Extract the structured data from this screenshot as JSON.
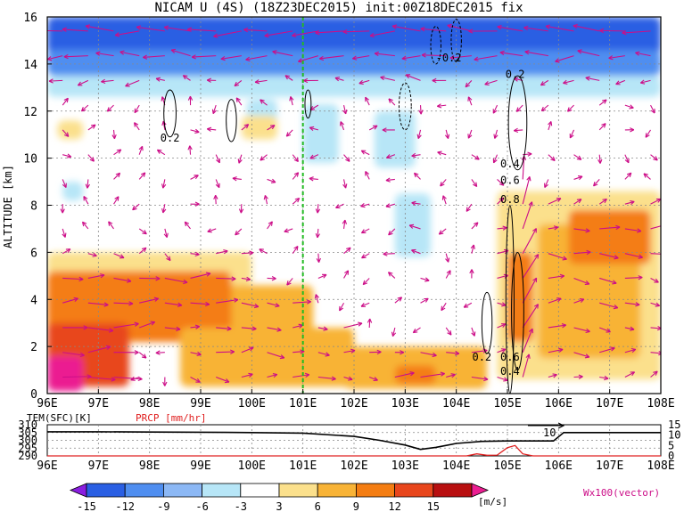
{
  "chart_data": [
    {
      "type": "heatmap",
      "title": "NICAM U (4S) (18Z23DEC2015) init:00Z18DEC2015 fix",
      "xlabel": "",
      "ylabel": "ALTITUDE [km]",
      "xlim": [
        96,
        108
      ],
      "ylim": [
        0,
        16
      ],
      "x_ticks": [
        "96E",
        "97E",
        "98E",
        "99E",
        "100E",
        "101E",
        "102E",
        "103E",
        "104E",
        "105E",
        "106E",
        "107E",
        "108E"
      ],
      "y_ticks": [
        "0",
        "2",
        "4",
        "6",
        "8",
        "10",
        "12",
        "14",
        "16"
      ],
      "grid": true,
      "marker_line_lon": 101,
      "colorbar": {
        "levels": [
          -15,
          -12,
          -9,
          -6,
          -3,
          3,
          6,
          9,
          12,
          15
        ],
        "tick_labels": [
          "-15",
          "-12",
          "-9",
          "-6",
          "-3",
          "3",
          "6",
          "9",
          "12",
          "15"
        ],
        "colors": [
          "#8a1ee0",
          "#2a5fe3",
          "#4f8ef0",
          "#8cb8f5",
          "#b7e6f7",
          "#ffffff",
          "#fbe08c",
          "#f8b336",
          "#f47d12",
          "#e8461c",
          "#b80f10",
          "#eb1e91"
        ],
        "unit": "[m/s]"
      },
      "vector_label": "Wx100(vector)",
      "vector_color": "#cc0e88",
      "regions": [
        {
          "lon": [
            96,
            108
          ],
          "alt": [
            14.4,
            16
          ],
          "value": -14
        },
        {
          "lon": [
            96,
            108
          ],
          "alt": [
            13.5,
            14.6
          ],
          "value": -10
        },
        {
          "lon": [
            96,
            108
          ],
          "alt": [
            12.6,
            13.5
          ],
          "value": -5
        },
        {
          "lon": [
            99.9,
            100.5
          ],
          "alt": [
            11.5,
            12.5
          ],
          "value": -4
        },
        {
          "lon": [
            101.0,
            101.7
          ],
          "alt": [
            9.8,
            12.3
          ],
          "value": -4
        },
        {
          "lon": [
            102.4,
            103.2
          ],
          "alt": [
            9.6,
            12.0
          ],
          "value": -4
        },
        {
          "lon": [
            102.8,
            103.5
          ],
          "alt": [
            5.8,
            8.5
          ],
          "value": -4
        },
        {
          "lon": [
            96.3,
            96.7
          ],
          "alt": [
            8.2,
            9.0
          ],
          "value": -4
        },
        {
          "lon": [
            96.2,
            96.7
          ],
          "alt": [
            10.8,
            11.6
          ],
          "value": 4
        },
        {
          "lon": [
            99.8,
            100.5
          ],
          "alt": [
            10.8,
            11.8
          ],
          "value": 4
        },
        {
          "lon": [
            96,
            100.0
          ],
          "alt": [
            4.5,
            6.0
          ],
          "value": 4
        },
        {
          "lon": [
            96,
            101.2
          ],
          "alt": [
            2.6,
            4.6
          ],
          "value": 7
        },
        {
          "lon": [
            96,
            99.6
          ],
          "alt": [
            2.2,
            5.2
          ],
          "value": 10
        },
        {
          "lon": [
            96,
            97.6
          ],
          "alt": [
            0.3,
            3.0
          ],
          "value": 13
        },
        {
          "lon": [
            96,
            96.7
          ],
          "alt": [
            0.1,
            1.6
          ],
          "value": 16
        },
        {
          "lon": [
            98.6,
            102.0
          ],
          "alt": [
            0.3,
            2.8
          ],
          "value": 7
        },
        {
          "lon": [
            101.8,
            104.6
          ],
          "alt": [
            0.2,
            2.0
          ],
          "value": 6
        },
        {
          "lon": [
            102.8,
            103.6
          ],
          "alt": [
            0.4,
            1.2
          ],
          "value": 10
        },
        {
          "lon": [
            104.8,
            108
          ],
          "alt": [
            0.6,
            8.6
          ],
          "value": 4
        },
        {
          "lon": [
            105.6,
            107.6
          ],
          "alt": [
            1.5,
            7.2
          ],
          "value": 7
        },
        {
          "lon": [
            106.2,
            107.8
          ],
          "alt": [
            5.5,
            7.8
          ],
          "value": 10
        },
        {
          "lon": [
            105.0,
            105.5
          ],
          "alt": [
            2.2,
            6.0
          ],
          "value": 10
        }
      ],
      "contour_labels": [
        {
          "lon": 98.4,
          "alt": 10.7,
          "text": "0.2"
        },
        {
          "lon": 103.85,
          "alt": 14.1,
          "text": "-0.2"
        },
        {
          "lon": 105.15,
          "alt": 13.4,
          "text": "0.2"
        },
        {
          "lon": 105.05,
          "alt": 9.6,
          "text": "0.4"
        },
        {
          "lon": 105.05,
          "alt": 8.9,
          "text": "0.6"
        },
        {
          "lon": 105.05,
          "alt": 8.1,
          "text": "0.8"
        },
        {
          "lon": 104.5,
          "alt": 1.4,
          "text": "0.2"
        },
        {
          "lon": 105.05,
          "alt": 1.4,
          "text": "0.6"
        },
        {
          "lon": 105.05,
          "alt": 0.8,
          "text": "0.4"
        }
      ]
    },
    {
      "type": "line",
      "xlim": [
        96,
        108
      ],
      "x_ticks": [
        "96E",
        "97E",
        "98E",
        "99E",
        "100E",
        "101E",
        "102E",
        "103E",
        "104E",
        "105E",
        "106E",
        "107E",
        "108E"
      ],
      "left_axis": {
        "label": "TEM(SFC)[K]",
        "ticks": [
          "290",
          "295",
          "300",
          "305",
          "310"
        ],
        "ylim": [
          290,
          310
        ]
      },
      "right_axis": {
        "label": "PRCP [mm/hr]",
        "ticks": [
          "0",
          "5",
          "10",
          "15"
        ],
        "ylim": [
          0,
          15
        ]
      },
      "annotation": "10",
      "series": [
        {
          "axis": "left",
          "color": "#000000",
          "x": [
            96,
            97,
            98,
            99,
            100,
            101,
            102,
            102.5,
            103,
            103.3,
            103.6,
            104,
            104.5,
            105,
            105.5,
            105.9,
            106.1,
            107,
            108
          ],
          "values": [
            305.5,
            305.5,
            305.3,
            305.2,
            305.0,
            304.6,
            302.5,
            300.0,
            297.0,
            294.2,
            295.5,
            298.0,
            299.3,
            299.6,
            299.6,
            299.6,
            305.0,
            305.0,
            305.0
          ]
        },
        {
          "axis": "right",
          "color": "#e02020",
          "x": [
            96,
            103.5,
            104.2,
            104.4,
            104.6,
            104.8,
            105.0,
            105.15,
            105.3,
            105.5,
            106,
            108
          ],
          "values": [
            0,
            0,
            0,
            1.0,
            0.3,
            0.4,
            4.0,
            5.0,
            1.0,
            0,
            0,
            0
          ]
        }
      ]
    }
  ]
}
